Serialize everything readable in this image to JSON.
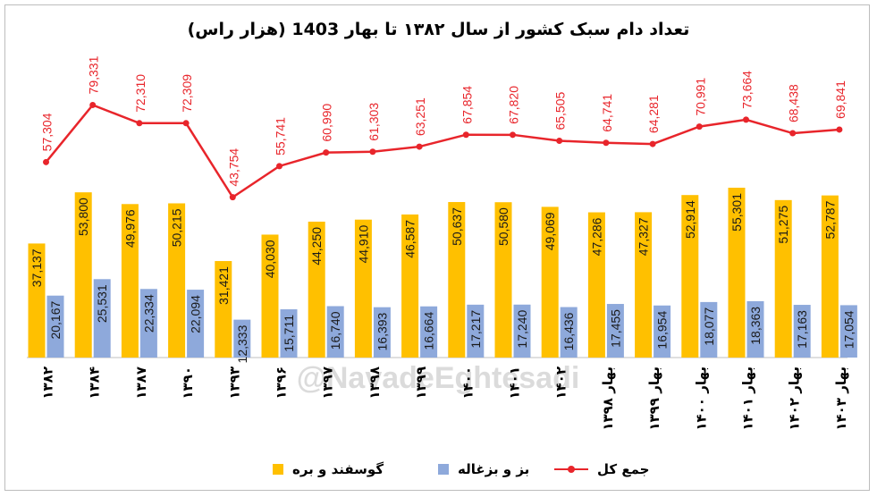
{
  "title": "تعداد دام سبک کشور از سال ۱۳۸۲ تا بهار 1403 (هزار راس)",
  "watermark": "@NavadeEghtesadi",
  "colors": {
    "sheep": "#FFC000",
    "goat": "#8EA9DB",
    "total": "#E8252B",
    "sheep_label": "#1a1a1a",
    "goat_label": "#1a1a1a",
    "total_label": "#E8252B"
  },
  "chart_data": {
    "type": "bar",
    "categories": [
      "۱۳۸۲",
      "۱۳۸۴",
      "۱۳۸۷",
      "۱۳۹۰",
      "۱۳۹۳",
      "۱۳۹۶",
      "۱۳۹۷",
      "۱۳۹۸",
      "۱۳۹۹",
      "۱۴۰۰",
      "۱۴۰۱",
      "۱۴۰۲",
      "بهار ۱۳۹۸",
      "بهار ۱۳۹۹",
      "بهار ۱۴۰۰",
      "بهار ۱۴۰۱",
      "بهار ۱۴۰۲",
      "بهار ۱۴۰۳"
    ],
    "series": [
      {
        "name": "گوسفند و بره",
        "type": "bar",
        "values": [
          37137,
          53800,
          49976,
          50215,
          31421,
          40030,
          44250,
          44910,
          46587,
          50637,
          50580,
          49069,
          47286,
          47327,
          52914,
          55301,
          51275,
          52787
        ],
        "labels": [
          "37,137",
          "53,800",
          "49,976",
          "50,215",
          "31,421",
          "40,030",
          "44,250",
          "44,910",
          "46,587",
          "50,637",
          "50,580",
          "49,069",
          "47,286",
          "47,327",
          "52,914",
          "55,301",
          "51,275",
          "52,787"
        ]
      },
      {
        "name": "بز و بزغاله",
        "type": "bar",
        "values": [
          20167,
          25531,
          22334,
          22094,
          12333,
          15711,
          16740,
          16393,
          16664,
          17217,
          17240,
          16436,
          17455,
          16954,
          18077,
          18363,
          17163,
          17054
        ],
        "labels": [
          "20,167",
          "25,531",
          "22,334",
          "22,094",
          "12,333",
          "15,711",
          "16,740",
          "16,393",
          "16,664",
          "17,217",
          "17,240",
          "16,436",
          "17,455",
          "16,954",
          "18,077",
          "18,363",
          "17,163",
          "17,054"
        ]
      },
      {
        "name": "جمع کل",
        "type": "line",
        "values": [
          57304,
          79331,
          72310,
          72309,
          43754,
          55741,
          60990,
          61303,
          63251,
          67854,
          67820,
          65505,
          64741,
          64281,
          70991,
          73664,
          68438,
          69841
        ],
        "labels": [
          "57,304",
          "79,331",
          "72,310",
          "72,309",
          "43,754",
          "55,741",
          "60,990",
          "61,303",
          "63,251",
          "67,854",
          "67,820",
          "65,505",
          "64,741",
          "64,281",
          "70,991",
          "73,664",
          "68,438",
          "69,841"
        ]
      }
    ],
    "grid": false,
    "legend_position": "bottom"
  }
}
